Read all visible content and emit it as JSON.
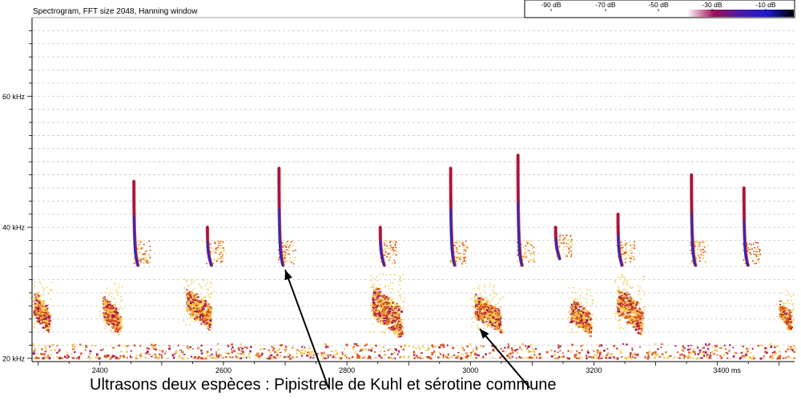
{
  "title": "Spectrogram, FFT size 2048, Hanning window",
  "caption": "Ultrasons deux espèces : Pipistrelle de Kuhl et sérotine commune",
  "colors": {
    "plot_bg": "#ffffff",
    "grid": "#c8c8c8",
    "axis": "#000000",
    "low_energy": "#f2c84a",
    "mid_energy": "#d84a1c",
    "high_energy": "#a0105a",
    "peak_energy": "#2a2acb"
  },
  "chart_data": {
    "type": "heatmap",
    "title": "Spectrogram, FFT size 2048, Hanning window",
    "xlabel": "",
    "ylabel": "",
    "xlim": [
      2290,
      3525
    ],
    "ylim": [
      19.5,
      72
    ],
    "x_ticks": [
      {
        "value": 2400,
        "label": "2400"
      },
      {
        "value": 2600,
        "label": "2600"
      },
      {
        "value": 2800,
        "label": "2800"
      },
      {
        "value": 3000,
        "label": "3000"
      },
      {
        "value": 3200,
        "label": "3200"
      },
      {
        "value": 3400,
        "label": "3400 ms"
      }
    ],
    "y_ticks": [
      {
        "value": 20,
        "label": "20 kHz"
      },
      {
        "value": 40,
        "label": "40 kHz"
      },
      {
        "value": 60,
        "label": "60 kHz"
      }
    ],
    "colorbar": {
      "labels": [
        "-90 dB",
        "-70 dB",
        "-50 dB",
        "-30 dB",
        "-10 dB"
      ],
      "gradient": [
        "#ffffff",
        "#ffffff",
        "#ffffff",
        "#a0105a",
        "#4a1aa8",
        "#1a1ad0",
        "#000000"
      ]
    },
    "kuhl_pipistrelle_calls": [
      {
        "t": 2455,
        "fmax": 47,
        "fmin": 35
      },
      {
        "t": 2574,
        "fmax": 40,
        "fmin": 35
      },
      {
        "t": 2690,
        "fmax": 49,
        "fmin": 35
      },
      {
        "t": 2854,
        "fmax": 40,
        "fmin": 35
      },
      {
        "t": 2968,
        "fmax": 49,
        "fmin": 35
      },
      {
        "t": 3077,
        "fmax": 51,
        "fmin": 35
      },
      {
        "t": 3138,
        "fmax": 40,
        "fmin": 36
      },
      {
        "t": 3239,
        "fmax": 42,
        "fmin": 35
      },
      {
        "t": 3358,
        "fmax": 48,
        "fmin": 35
      },
      {
        "t": 3443,
        "fmax": 46,
        "fmin": 35
      }
    ],
    "serotine_calls": [
      {
        "t": 2292,
        "f_hi": 30,
        "f_lo": 25.5,
        "dur": 25
      },
      {
        "t": 2404,
        "f_hi": 29.5,
        "f_lo": 25,
        "dur": 28
      },
      {
        "t": 2539,
        "f_hi": 30.5,
        "f_lo": 26,
        "dur": 40
      },
      {
        "t": 2840,
        "f_hi": 31,
        "f_lo": 25,
        "dur": 48
      },
      {
        "t": 3006,
        "f_hi": 29.5,
        "f_lo": 25.5,
        "dur": 42
      },
      {
        "t": 3161,
        "f_hi": 29,
        "f_lo": 25,
        "dur": 32
      },
      {
        "t": 3237,
        "f_hi": 31,
        "f_lo": 25.5,
        "dur": 40
      },
      {
        "t": 3500,
        "f_hi": 28.5,
        "f_lo": 25.5,
        "dur": 18
      }
    ],
    "annotations": [
      {
        "from_t": 2770,
        "from_f": 15.5,
        "to_t": 2700,
        "to_f": 33.5
      },
      {
        "from_t": 3096,
        "from_f": 15.5,
        "to_t": 3015,
        "to_f": 24.5
      }
    ]
  }
}
